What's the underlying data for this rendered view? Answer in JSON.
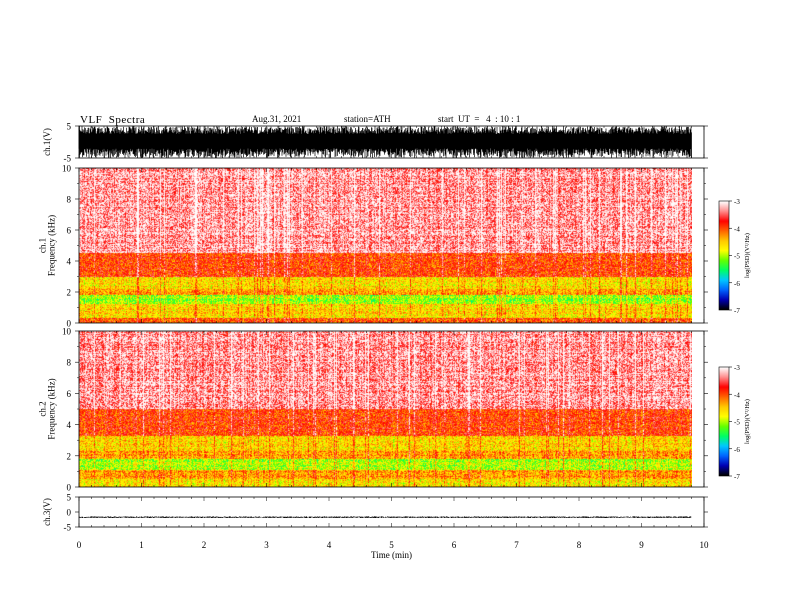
{
  "header": {
    "title": "VLF  Spectra",
    "date": "Aug.31, 2021",
    "station": "station=ATH",
    "start_ut": "start  UT  =   4  : 10 : 1"
  },
  "chart_data": [
    {
      "type": "line",
      "panel": "ch1-waveform",
      "ylabel": "ch.1(V)",
      "ylim": [
        -5,
        5
      ],
      "yticks": [
        "5",
        "-5"
      ],
      "xlim": [
        0,
        10
      ],
      "signal": {
        "amplitude_range": [
          -5,
          5
        ],
        "duration_min": 9.8
      }
    },
    {
      "type": "heatmap",
      "panel": "ch1-spectrogram",
      "ylabel": "ch.1\nFrequency  (kHz)",
      "ylim": [
        0,
        10
      ],
      "yticks": [
        "0",
        "2",
        "4",
        "6",
        "8",
        "10"
      ],
      "xlim": [
        0,
        10
      ],
      "duration_min": 9.8,
      "bands": [
        {
          "f_range": [
            0,
            0.3
          ],
          "level": -4.0
        },
        {
          "f_range": [
            0.3,
            1.2
          ],
          "level": -4.6
        },
        {
          "f_range": [
            1.2,
            1.8
          ],
          "level": -5.1
        },
        {
          "f_range": [
            1.8,
            2.2
          ],
          "level": -4.3
        },
        {
          "f_range": [
            2.2,
            3.0
          ],
          "level": -4.6
        },
        {
          "f_range": [
            3.0,
            4.5
          ],
          "level": -3.9
        },
        {
          "f_range": [
            4.5,
            10
          ],
          "level": -3.3
        }
      ],
      "colorbar": {
        "label": "log(PSD)(V²/Hz)",
        "range": [
          -7,
          -3
        ],
        "ticks": [
          "-3",
          "-4",
          "-5",
          "-6",
          "-7"
        ]
      }
    },
    {
      "type": "heatmap",
      "panel": "ch2-spectrogram",
      "ylabel": "ch.2\nFrequency  (kHz)",
      "ylim": [
        0,
        10
      ],
      "yticks": [
        "0",
        "2",
        "4",
        "6",
        "8",
        "10"
      ],
      "xlim": [
        0,
        10
      ],
      "duration_min": 9.8,
      "bands": [
        {
          "f_range": [
            0,
            0.5
          ],
          "level": -4.7
        },
        {
          "f_range": [
            0.5,
            1.1
          ],
          "level": -4.3
        },
        {
          "f_range": [
            1.1,
            1.8
          ],
          "level": -5.0
        },
        {
          "f_range": [
            1.8,
            2.3
          ],
          "level": -4.3
        },
        {
          "f_range": [
            2.3,
            3.3
          ],
          "level": -4.6
        },
        {
          "f_range": [
            3.3,
            5.0
          ],
          "level": -3.9
        },
        {
          "f_range": [
            5.0,
            10
          ],
          "level": -3.3
        }
      ],
      "colorbar": {
        "label": "log(PSD)(V²/Hz)",
        "range": [
          -7,
          -3
        ],
        "ticks": [
          "-3",
          "-4",
          "-5",
          "-6",
          "-7"
        ]
      }
    },
    {
      "type": "line",
      "panel": "ch3-waveform",
      "ylabel": "ch.3(V)",
      "ylim": [
        -5,
        5
      ],
      "yticks": [
        "5",
        "0",
        "-5"
      ],
      "xlim": [
        0,
        10
      ],
      "signal": {
        "mean": -1.7,
        "amplitude_range": [
          -2.0,
          -1.4
        ],
        "duration_min": 9.8
      }
    }
  ],
  "time_axis": {
    "label": "Time  (min)",
    "ticks": [
      "0",
      "1",
      "2",
      "3",
      "4",
      "5",
      "6",
      "7",
      "8",
      "9",
      "10"
    ]
  },
  "colors": {
    "colormap": [
      "#000000",
      "#0000b4",
      "#0064ff",
      "#00c8ff",
      "#00ff64",
      "#64ff00",
      "#ffff00",
      "#ffc800",
      "#ff6400",
      "#ff0000",
      "#ff8c8c",
      "#ffffff"
    ],
    "trace": "#000000",
    "axis": "#000000"
  }
}
